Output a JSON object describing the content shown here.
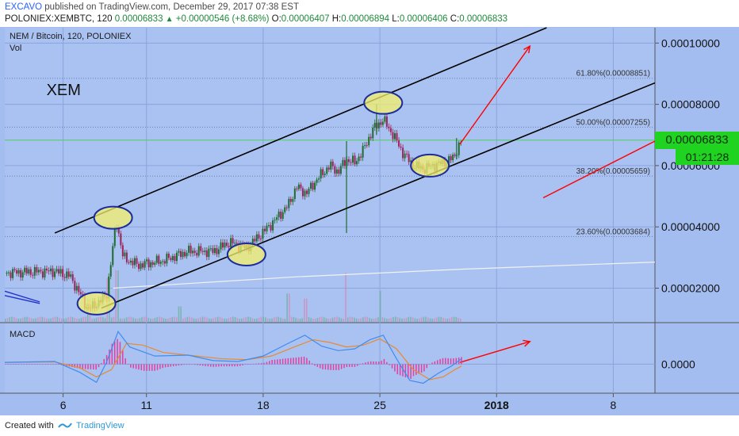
{
  "header": {
    "author": "EXCAVO",
    "published_text": "published on TradingView.com, December 29, 2017 07:38 EST",
    "symbol_interval": "POLONIEX:XEMBTC, 120",
    "last": "0.00006833",
    "change": "+0.00000546 (+8.68%)",
    "open_label": "O:",
    "open": "0.00006407",
    "high_label": "H:",
    "high": "0.00006894",
    "low_label": "L:",
    "low": "0.00006406",
    "close_label": "C:",
    "close": "0.00006833"
  },
  "legend": {
    "title": "NEM / Bitcoin, 120, POLONIEX",
    "vol_label": "Vol"
  },
  "annotation_text": "XEM",
  "price_tag": {
    "price": "0.00006833",
    "timer": "01:21:28"
  },
  "macd_label": "MACD",
  "footer": {
    "created_with": "Created with",
    "brand": "TradingView"
  },
  "colors": {
    "background": "#a4bdf0",
    "pane_background": "#aac2f1",
    "up_candle": "#1f6b2e",
    "down_candle": "#a0205a",
    "trend_line": "#000000",
    "arrow": "#ff0000",
    "ellipse_fill": "#f4f06a",
    "ellipse_stroke": "#1c2c9c",
    "price_tag": "#21d321",
    "macd_line": "#3f8cf0",
    "signal_line": "#e88a30",
    "histogram": "#e040a0",
    "ma_line": "#f2f2f2"
  },
  "chart_data": {
    "type": "candlestick",
    "title": "NEM / Bitcoin, 120, POLONIEX",
    "price_axis": {
      "ticks": [
        {
          "value": 0.0001,
          "label": "0.00010000"
        },
        {
          "value": 8e-05,
          "label": "0.00008000"
        },
        {
          "value": 6e-05,
          "label": "0.00006000"
        },
        {
          "value": 4e-05,
          "label": "0.00004000"
        },
        {
          "value": 2e-05,
          "label": "0.00002000"
        }
      ],
      "range": [
        9e-06,
        0.000105
      ]
    },
    "time_axis": {
      "ticks": [
        {
          "day": 6,
          "label": "6",
          "bold": false
        },
        {
          "day": 11,
          "label": "11",
          "bold": false
        },
        {
          "day": 18,
          "label": "18",
          "bold": false
        },
        {
          "day": 25,
          "label": "25",
          "bold": false
        },
        {
          "day": 32,
          "label": "2018",
          "bold": true
        },
        {
          "day": 39,
          "label": "8",
          "bold": false
        }
      ],
      "range": [
        2.5,
        41.5
      ]
    },
    "fibonacci_levels": [
      {
        "label": "61.80%(0.00008851)",
        "value": 8.851e-05
      },
      {
        "label": "50.00%(0.00007255)",
        "value": 7.255e-05
      },
      {
        "label": "38.20%(0.00005659)",
        "value": 5.659e-05
      },
      {
        "label": "23.60%(0.00003684)",
        "value": 3.684e-05
      }
    ],
    "current_price": 6.833e-05,
    "price_path": [
      [
        2.5,
        2.5e-05
      ],
      [
        4.0,
        2.53e-05
      ],
      [
        5.5,
        2.55e-05
      ],
      [
        6.4,
        2.4e-05
      ],
      [
        7.0,
        1.82e-05
      ],
      [
        7.5,
        1.3e-05
      ],
      [
        8.0,
        1.48e-05
      ],
      [
        8.6,
        1.75e-05
      ],
      [
        9.2,
        4.2e-05
      ],
      [
        9.6,
        3e-05
      ],
      [
        10.5,
        2.75e-05
      ],
      [
        12.0,
        2.9e-05
      ],
      [
        13.5,
        3.2e-05
      ],
      [
        15.0,
        3.2e-05
      ],
      [
        16.0,
        3.5e-05
      ],
      [
        17.0,
        3.3e-05
      ],
      [
        18.5,
        4.1e-05
      ],
      [
        19.5,
        4.7e-05
      ],
      [
        20.0,
        5.3e-05
      ],
      [
        20.6,
        5.1e-05
      ],
      [
        21.3,
        5.6e-05
      ],
      [
        22.0,
        6e-05
      ],
      [
        22.5,
        5.8e-05
      ],
      [
        23.0,
        6.2e-05
      ],
      [
        23.5,
        6.1e-05
      ],
      [
        24.0,
        6.5e-05
      ],
      [
        24.6,
        7.2e-05
      ],
      [
        25.2,
        7.5e-05
      ],
      [
        25.8,
        7e-05
      ],
      [
        26.4,
        6.4e-05
      ],
      [
        27.0,
        6e-05
      ],
      [
        27.6,
        5.9e-05
      ],
      [
        28.2,
        6e-05
      ],
      [
        28.8,
        6.1e-05
      ],
      [
        29.4,
        6.25e-05
      ],
      [
        29.9,
        6.83e-05
      ]
    ],
    "spikes": [
      {
        "day": 23.0,
        "low": 3.8e-05,
        "high": 6.8e-05
      },
      {
        "day": 24.8,
        "low": 7e-05,
        "high": 8e-05
      },
      {
        "day": 29.6,
        "low": 6.2e-05,
        "high": 6.9e-05
      }
    ],
    "trend_lines": [
      {
        "from": [
          5.5,
          3.8e-05
        ],
        "to": [
          35.0,
          0.000105
        ]
      },
      {
        "from": [
          8.3,
          1.35e-05
        ],
        "to": [
          41.5,
          8.7e-05
        ]
      }
    ],
    "moving_average": [
      [
        9.0,
        2e-05
      ],
      [
        20.0,
        2.37e-05
      ],
      [
        30.0,
        2.62e-05
      ],
      [
        41.5,
        2.85e-05
      ]
    ],
    "ellipses": [
      {
        "day": 8.0,
        "value": 1.5e-05
      },
      {
        "day": 9.0,
        "value": 4.3e-05
      },
      {
        "day": 17.0,
        "value": 3.1e-05
      },
      {
        "day": 25.2,
        "value": 8.05e-05
      },
      {
        "day": 28.0,
        "value": 6e-05
      }
    ],
    "arrows": [
      {
        "from": [
          29.8,
          6.7e-05
        ],
        "to": [
          34.0,
          9.9e-05
        ]
      },
      {
        "from": [
          34.8,
          4.95e-05
        ],
        "to": [
          41.5,
          6.8e-05
        ]
      }
    ],
    "annotation": {
      "day": 5.0,
      "value": 8.3e-05
    },
    "macd_pane": {
      "label": "MACD",
      "ticks": [
        {
          "value": 0.0,
          "label": "0.0000"
        }
      ],
      "range": [
        -3.2,
        4.5
      ],
      "macd": [
        [
          2.5,
          0.2
        ],
        [
          5.5,
          0.3
        ],
        [
          7.0,
          -0.9
        ],
        [
          8.0,
          -2.0
        ],
        [
          8.6,
          0.2
        ],
        [
          9.3,
          3.6
        ],
        [
          10.0,
          1.9
        ],
        [
          11.5,
          0.9
        ],
        [
          13.5,
          1.0
        ],
        [
          15.0,
          0.4
        ],
        [
          16.5,
          0.3
        ],
        [
          18.0,
          0.9
        ],
        [
          19.5,
          2.3
        ],
        [
          20.5,
          3.2
        ],
        [
          21.5,
          2.0
        ],
        [
          22.5,
          1.5
        ],
        [
          23.5,
          1.7
        ],
        [
          24.4,
          2.7
        ],
        [
          25.2,
          3.2
        ],
        [
          26.0,
          0.6
        ],
        [
          26.8,
          -1.8
        ],
        [
          27.6,
          -2.1
        ],
        [
          28.5,
          -1.0
        ],
        [
          29.3,
          -0.2
        ],
        [
          29.9,
          0.6
        ]
      ],
      "signal": [
        [
          2.5,
          0.2
        ],
        [
          5.5,
          0.25
        ],
        [
          7.0,
          -0.4
        ],
        [
          8.0,
          -1.4
        ],
        [
          8.9,
          -0.6
        ],
        [
          9.8,
          2.3
        ],
        [
          10.8,
          2.1
        ],
        [
          12.0,
          1.3
        ],
        [
          13.5,
          1.0
        ],
        [
          15.5,
          0.6
        ],
        [
          17.0,
          0.5
        ],
        [
          18.5,
          0.9
        ],
        [
          20.0,
          2.0
        ],
        [
          21.0,
          2.7
        ],
        [
          22.0,
          2.4
        ],
        [
          23.0,
          1.9
        ],
        [
          24.0,
          2.1
        ],
        [
          25.0,
          2.8
        ],
        [
          26.0,
          1.7
        ],
        [
          27.0,
          -0.6
        ],
        [
          28.0,
          -1.7
        ],
        [
          28.8,
          -1.4
        ],
        [
          29.5,
          -0.6
        ],
        [
          29.9,
          -0.2
        ]
      ],
      "arrow": {
        "from": [
          29.8,
          0.2
        ],
        "to": [
          34.0,
          2.5
        ]
      }
    },
    "volume": [
      {
        "day": 7.5,
        "value": 0.45
      },
      {
        "day": 8.7,
        "value": 0.85
      },
      {
        "day": 9.2,
        "value": 1.0
      },
      {
        "day": 13.0,
        "value": 0.3
      },
      {
        "day": 19.5,
        "value": 0.55
      },
      {
        "day": 20.5,
        "value": 0.45
      },
      {
        "day": 22.9,
        "value": 0.95
      },
      {
        "day": 25.0,
        "value": 0.6
      }
    ]
  }
}
